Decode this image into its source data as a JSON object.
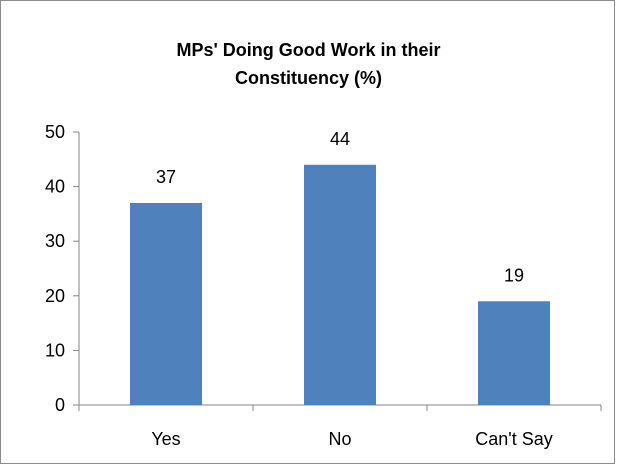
{
  "chart_data": {
    "type": "bar",
    "title": "MPs' Doing Good Work in their\nConstituency (%)",
    "categories": [
      "Yes",
      "No",
      "Can't Say"
    ],
    "values": [
      37,
      44,
      19
    ],
    "data_labels": [
      "37",
      "44",
      "19"
    ],
    "ylim": [
      0,
      50
    ],
    "yticks": [
      0,
      10,
      20,
      30,
      40,
      50
    ],
    "xlabel": "",
    "ylabel": "",
    "grid": false,
    "legend": "none",
    "bar_color": "#4f81bd"
  }
}
